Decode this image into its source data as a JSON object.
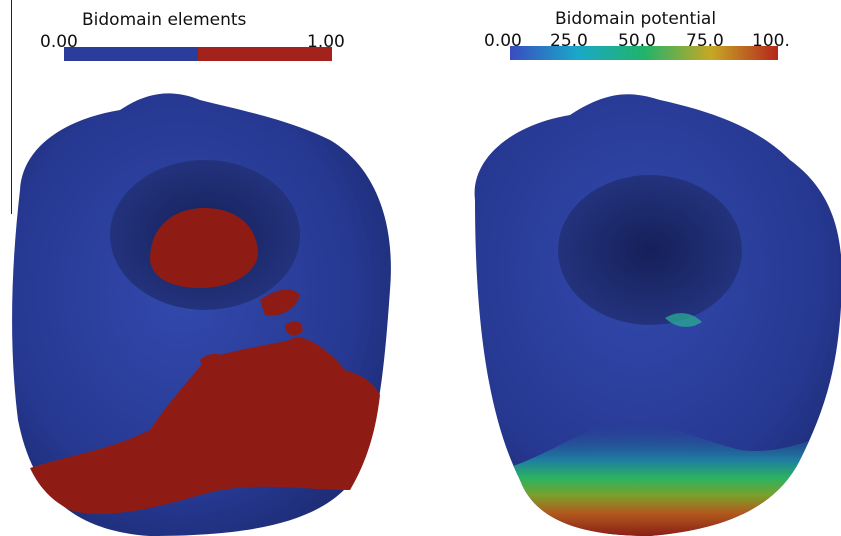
{
  "left": {
    "colorbar": {
      "title": "Bidomain elements",
      "min_label": "0.00",
      "max_label": "1.00",
      "colors": [
        "#2a3d9a",
        "#a3221c"
      ]
    },
    "surface_colors": {
      "base": "#283a93",
      "region": "#8e1c15"
    }
  },
  "right": {
    "colorbar": {
      "title": "Bidomain potential",
      "ticks": [
        "0.00",
        "25.0",
        "50.0",
        "75.0",
        "100."
      ],
      "colors": [
        "#3a4cc0",
        "#1aa8c9",
        "#21b36b",
        "#c6a825",
        "#b5261c"
      ]
    },
    "surface_colors": {
      "base": "#283a93"
    }
  }
}
